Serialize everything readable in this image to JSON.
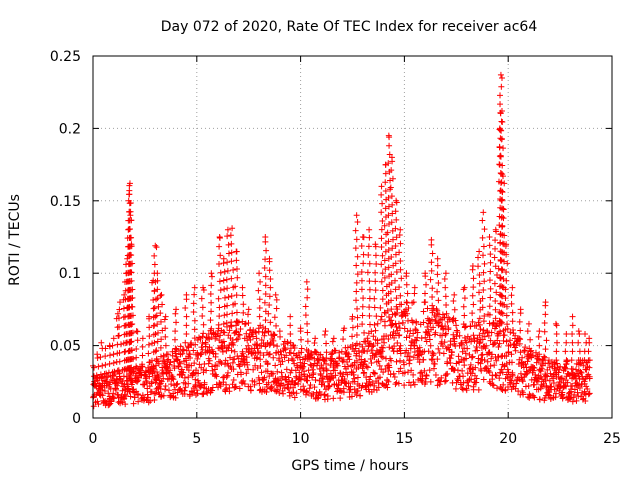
{
  "chart_data": {
    "type": "scatter",
    "title": "Day 072 of 2020, Rate Of TEC Index for receiver ac64",
    "xlabel": "GPS time / hours",
    "ylabel": "ROTI / TECUs",
    "xlim": [
      0,
      25
    ],
    "ylim": [
      0,
      0.25
    ],
    "xticks": [
      "0",
      "5",
      "10",
      "15",
      "20",
      "25"
    ],
    "yticks": [
      "0",
      "0.05",
      "0.1",
      "0.15",
      "0.2",
      "0.25"
    ],
    "grid": true,
    "marker": "plus",
    "color": "#ff0000",
    "series": [
      {
        "points": [
          [
            0.0,
            0.036
          ],
          [
            0.2,
            0.044
          ],
          [
            0.4,
            0.052
          ],
          [
            0.6,
            0.048
          ],
          [
            0.8,
            0.05
          ],
          [
            1.0,
            0.055
          ],
          [
            1.2,
            0.072
          ],
          [
            1.3,
            0.08
          ],
          [
            1.5,
            0.085
          ],
          [
            1.6,
            0.1
          ],
          [
            1.65,
            0.11
          ],
          [
            1.7,
            0.13
          ],
          [
            1.72,
            0.15
          ],
          [
            1.75,
            0.157
          ],
          [
            1.78,
            0.162
          ],
          [
            1.8,
            0.14
          ],
          [
            1.85,
            0.12
          ],
          [
            1.9,
            0.083
          ],
          [
            2.1,
            0.06
          ],
          [
            2.4,
            0.055
          ],
          [
            2.7,
            0.07
          ],
          [
            2.9,
            0.095
          ],
          [
            3.0,
            0.119
          ],
          [
            3.1,
            0.1
          ],
          [
            3.3,
            0.085
          ],
          [
            3.5,
            0.07
          ],
          [
            4.0,
            0.075
          ],
          [
            4.5,
            0.085
          ],
          [
            4.9,
            0.09
          ],
          [
            5.3,
            0.09
          ],
          [
            5.7,
            0.1
          ],
          [
            6.1,
            0.125
          ],
          [
            6.3,
            0.11
          ],
          [
            6.5,
            0.13
          ],
          [
            6.7,
            0.131
          ],
          [
            6.9,
            0.115
          ],
          [
            7.2,
            0.09
          ],
          [
            7.5,
            0.075
          ],
          [
            8.0,
            0.1
          ],
          [
            8.3,
            0.125
          ],
          [
            8.5,
            0.11
          ],
          [
            8.8,
            0.085
          ],
          [
            9.0,
            0.06
          ],
          [
            9.5,
            0.07
          ],
          [
            10.0,
            0.062
          ],
          [
            10.3,
            0.094
          ],
          [
            10.7,
            0.055
          ],
          [
            11.2,
            0.06
          ],
          [
            11.6,
            0.055
          ],
          [
            12.1,
            0.062
          ],
          [
            12.5,
            0.07
          ],
          [
            12.7,
            0.14
          ],
          [
            13.0,
            0.125
          ],
          [
            13.3,
            0.13
          ],
          [
            13.6,
            0.12
          ],
          [
            13.9,
            0.16
          ],
          [
            14.1,
            0.175
          ],
          [
            14.25,
            0.195
          ],
          [
            14.4,
            0.18
          ],
          [
            14.6,
            0.15
          ],
          [
            14.8,
            0.13
          ],
          [
            15.1,
            0.1
          ],
          [
            15.5,
            0.09
          ],
          [
            16.0,
            0.1
          ],
          [
            16.3,
            0.123
          ],
          [
            16.6,
            0.11
          ],
          [
            17.0,
            0.1
          ],
          [
            17.4,
            0.085
          ],
          [
            17.9,
            0.09
          ],
          [
            18.3,
            0.105
          ],
          [
            18.6,
            0.115
          ],
          [
            18.8,
            0.142
          ],
          [
            19.1,
            0.125
          ],
          [
            19.4,
            0.13
          ],
          [
            19.6,
            0.2
          ],
          [
            19.65,
            0.237
          ],
          [
            19.7,
            0.212
          ],
          [
            19.75,
            0.167
          ],
          [
            19.9,
            0.12
          ],
          [
            20.2,
            0.09
          ],
          [
            20.6,
            0.075
          ],
          [
            21.0,
            0.065
          ],
          [
            21.5,
            0.06
          ],
          [
            21.8,
            0.08
          ],
          [
            22.3,
            0.065
          ],
          [
            22.8,
            0.058
          ],
          [
            23.1,
            0.07
          ],
          [
            23.4,
            0.06
          ],
          [
            23.7,
            0.058
          ],
          [
            23.9,
            0.055
          ]
        ],
        "band": [
          [
            0,
            0.018
          ],
          [
            1,
            0.02
          ],
          [
            2,
            0.022
          ],
          [
            3,
            0.025
          ],
          [
            4,
            0.03
          ],
          [
            5,
            0.035
          ],
          [
            6,
            0.04
          ],
          [
            7,
            0.042
          ],
          [
            8,
            0.04
          ],
          [
            9,
            0.035
          ],
          [
            10,
            0.03
          ],
          [
            11,
            0.028
          ],
          [
            12,
            0.03
          ],
          [
            13,
            0.033
          ],
          [
            14,
            0.045
          ],
          [
            15,
            0.05
          ],
          [
            16,
            0.05
          ],
          [
            17,
            0.045
          ],
          [
            18,
            0.04
          ],
          [
            19,
            0.045
          ],
          [
            20,
            0.04
          ],
          [
            21,
            0.03
          ],
          [
            22,
            0.025
          ],
          [
            23,
            0.025
          ],
          [
            24,
            0.025
          ]
        ]
      }
    ]
  }
}
